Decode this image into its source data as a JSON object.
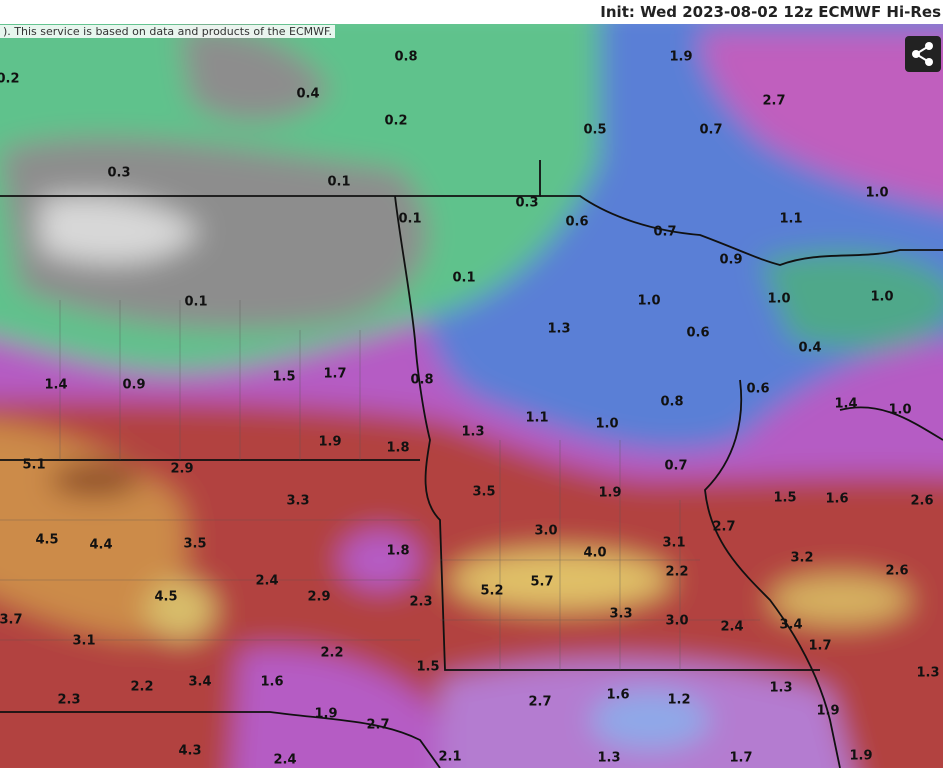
{
  "header": {
    "title": "Init: Wed 2023-08-02 12z ECMWF Hi-Res",
    "attribution": "). This service is based on data and products of the ECMWF."
  },
  "map": {
    "labels": [
      "0.8",
      "1.9",
      "0.2",
      "0.4",
      "2.7",
      "0.2",
      "0.5",
      "0.7",
      "0.3",
      "0.1",
      "1.0",
      "0.3",
      "0.1",
      "0.6",
      "1.1",
      "0.7",
      "0.9",
      "0.1",
      "1.0",
      "1.0",
      "1.0",
      "0.1",
      "1.3",
      "0.6",
      "0.4",
      "1.5",
      "1.7",
      "1.4",
      "0.9",
      "0.8",
      "0.6",
      "0.8",
      "1.4",
      "1.0",
      "1.1",
      "1.0",
      "1.3",
      "1.9",
      "1.8",
      "0.7",
      "5.1",
      "2.9",
      "3.5",
      "1.9",
      "1.5",
      "1.6",
      "2.6",
      "3.3",
      "3.0",
      "2.7",
      "4.5",
      "4.4",
      "3.5",
      "3.1",
      "1.8",
      "4.0",
      "3.2",
      "2.6",
      "2.2",
      "2.4",
      "5.7",
      "5.2",
      "4.5",
      "2.9",
      "2.3",
      "3.3",
      "3.0",
      "2.4",
      "3.4",
      "3.7",
      "3.1",
      "1.7",
      "2.2",
      "1.5",
      "1.3",
      "3.4",
      "1.6",
      "2.2",
      "1.3",
      "2.3",
      "2.7",
      "1.6",
      "1.2",
      "1.9",
      "1.9",
      "2.7",
      "4.3",
      "2.4",
      "2.1",
      "1.3",
      "1.7",
      "1.9"
    ]
  }
}
